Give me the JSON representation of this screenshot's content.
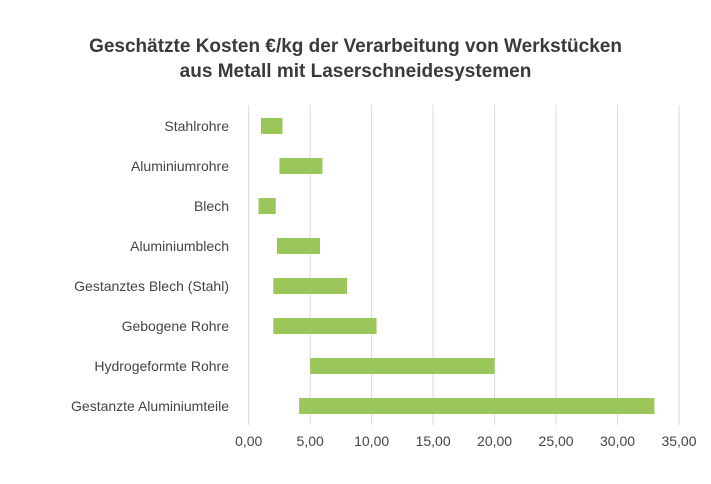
{
  "chart_data": {
    "type": "bar",
    "orientation": "horizontal",
    "subtype": "floating-range",
    "title_lines": [
      "Geschätzte Kosten €/kg der Verarbeitung von Werkstücken",
      "aus Metall mit Laserschneidesystemen"
    ],
    "categories": [
      "Stahlrohre",
      "Aluminiumrohre",
      "Blech",
      "Aluminiumblech",
      "Gestanztes Blech (Stahl)",
      "Gebogene Rohre",
      "Hydrogeformte Rohre",
      "Gestanzte Aluminiumteile"
    ],
    "ranges": [
      [
        1.0,
        2.75
      ],
      [
        2.5,
        6.0
      ],
      [
        0.8,
        2.2
      ],
      [
        2.3,
        5.8
      ],
      [
        2.0,
        8.0
      ],
      [
        2.0,
        10.4
      ],
      [
        5.0,
        20.0
      ],
      [
        4.1,
        33.0
      ]
    ],
    "xlim": [
      0,
      35
    ],
    "xticks": [
      "0,00",
      "5,00",
      "10,00",
      "15,00",
      "20,00",
      "25,00",
      "30,00",
      "35,00"
    ],
    "grid": "vertical",
    "legend": "none",
    "colors": {
      "bar": "#9bc65a",
      "grid": "#d9d9d9",
      "text": "#444444"
    }
  }
}
